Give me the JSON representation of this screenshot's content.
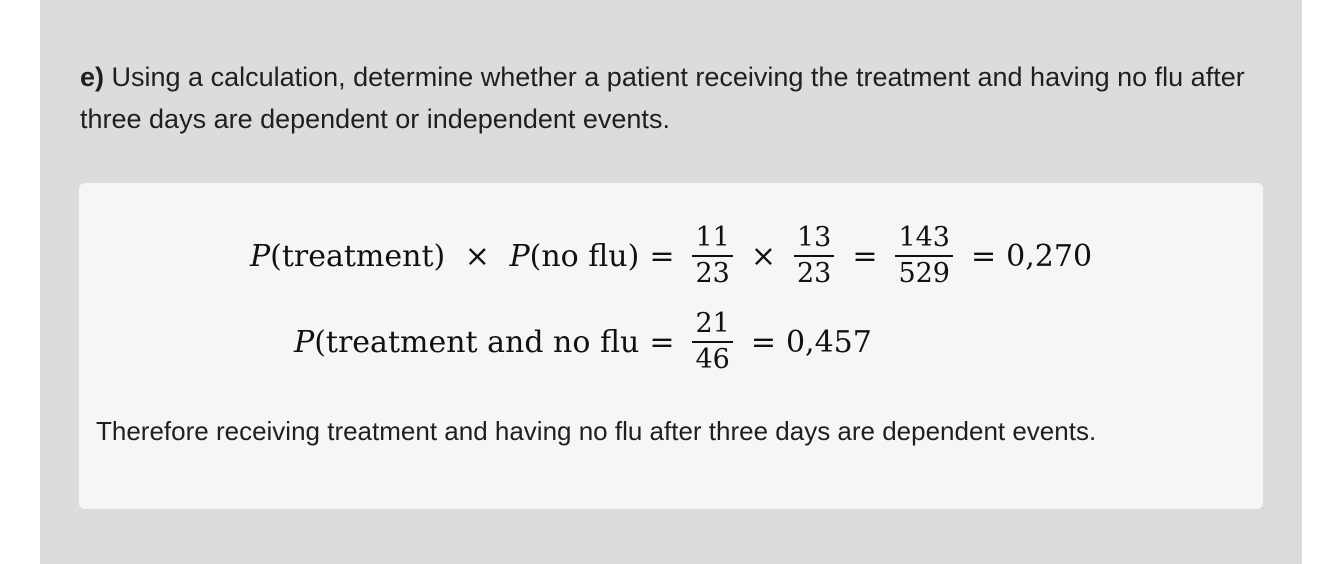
{
  "question": {
    "label": "e)",
    "text": "Using a calculation, determine whether a patient receiving the treatment and having no flu after three days are dependent or independent events."
  },
  "solution": {
    "line1": {
      "lhs_p1": "P",
      "lhs_a1": "(treatment)",
      "times": "×",
      "lhs_p2": "P",
      "lhs_a2": "(no flu)",
      "eq": "=",
      "f1_num": "11",
      "f1_den": "23",
      "f2_num": "13",
      "f2_den": "23",
      "f3_num": "143",
      "f3_den": "529",
      "result": "0,270"
    },
    "line2": {
      "lhs_p": "P",
      "lhs_a": "(treatment and no flu",
      "eq": "=",
      "f_num": "21",
      "f_den": "46",
      "result": "0,457"
    },
    "conclusion": "Therefore receiving treatment and having no flu after three days are dependent events."
  }
}
